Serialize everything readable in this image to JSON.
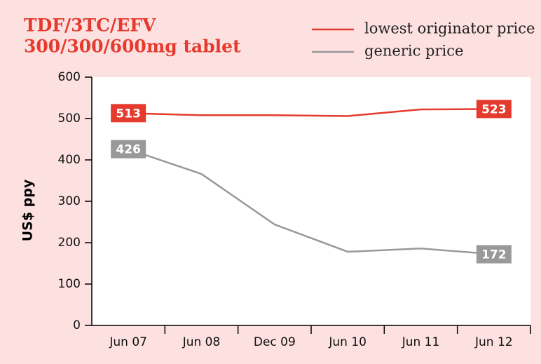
{
  "chart_data": {
    "type": "line",
    "title": "TDF/3TC/EFV",
    "subtitle": "300/300/600mg tablet",
    "y_label": "US$ ppy",
    "categories": [
      "Jun 07",
      "Jun 08",
      "Dec 09",
      "Jun 10",
      "Jun 11",
      "Jun 12"
    ],
    "series": [
      {
        "name": "lowest originator price",
        "color": "#e53a2e",
        "values": [
          513,
          508,
          508,
          506,
          522,
          523
        ],
        "value_labels": [
          "513",
          null,
          null,
          null,
          null,
          "523"
        ]
      },
      {
        "name": "generic price",
        "color": "#999999",
        "values": [
          426,
          366,
          244,
          178,
          186,
          172
        ],
        "value_labels": [
          "426",
          null,
          null,
          null,
          null,
          "172"
        ]
      }
    ],
    "ylim": [
      0,
      600
    ],
    "yticks": [
      0,
      100,
      200,
      300,
      400,
      500,
      600
    ]
  }
}
